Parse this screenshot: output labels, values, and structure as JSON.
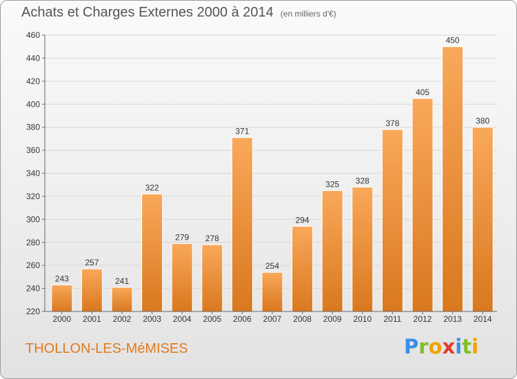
{
  "header": {
    "title": "Achats et Charges Externes 2000 à 2014",
    "subtitle": "(en milliers d'€)"
  },
  "footer": {
    "location": "THOLLON-LES-MéMISES",
    "logo_letters": [
      "P",
      "r",
      "o",
      "x",
      "i",
      "t",
      "i"
    ],
    "logo_colors": [
      "#3a8ee6",
      "#7fbf26",
      "#f2a100",
      "#e03a2f",
      "#3a8ee6",
      "#7fbf26",
      "#f2a100"
    ]
  },
  "colors": {
    "bar_top": "#f9a85a",
    "bar_bottom": "#d9781f",
    "grid": "#d6d6d6",
    "axis_text": "#333333"
  },
  "chart_data": {
    "type": "bar",
    "title": "Achats et Charges Externes 2000 à 2014",
    "subtitle": "(en milliers d'€)",
    "categories": [
      "2000",
      "2001",
      "2002",
      "2003",
      "2004",
      "2005",
      "2006",
      "2007",
      "2008",
      "2009",
      "2010",
      "2011",
      "2012",
      "2013",
      "2014"
    ],
    "values": [
      243,
      257,
      241,
      322,
      279,
      278,
      371,
      254,
      294,
      325,
      328,
      378,
      405,
      450,
      380
    ],
    "ylim": [
      220,
      460
    ],
    "yticks": [
      220,
      240,
      260,
      280,
      300,
      320,
      340,
      360,
      380,
      400,
      420,
      440,
      460
    ],
    "grid": true,
    "xlabel": "",
    "ylabel": ""
  }
}
